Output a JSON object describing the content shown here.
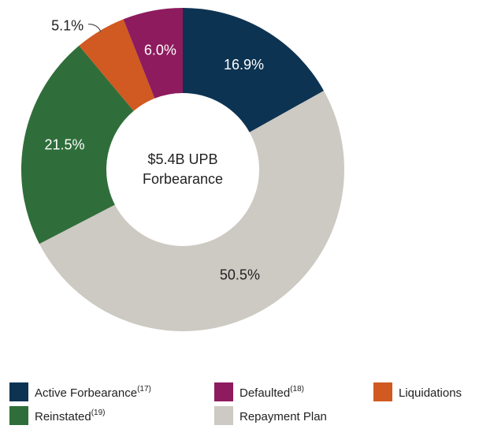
{
  "chart_data": {
    "type": "pie",
    "center_text": [
      "$5.4B UPB",
      "Forbearance"
    ],
    "categories": [
      "Active Forbearance",
      "Repayment Plan",
      "Reinstated",
      "Liquidations",
      "Defaulted"
    ],
    "superscripts": [
      "(17)",
      null,
      "(19)",
      null,
      "(18)"
    ],
    "values": [
      16.9,
      50.5,
      21.5,
      5.1,
      6.0
    ],
    "value_labels": [
      "16.9%",
      "50.5%",
      "21.5%",
      "5.1%",
      "6.0%"
    ],
    "colors": [
      "#0d3352",
      "#cdc9c3",
      "#2f6e3a",
      "#d05a21",
      "#8e1b5e"
    ]
  }
}
